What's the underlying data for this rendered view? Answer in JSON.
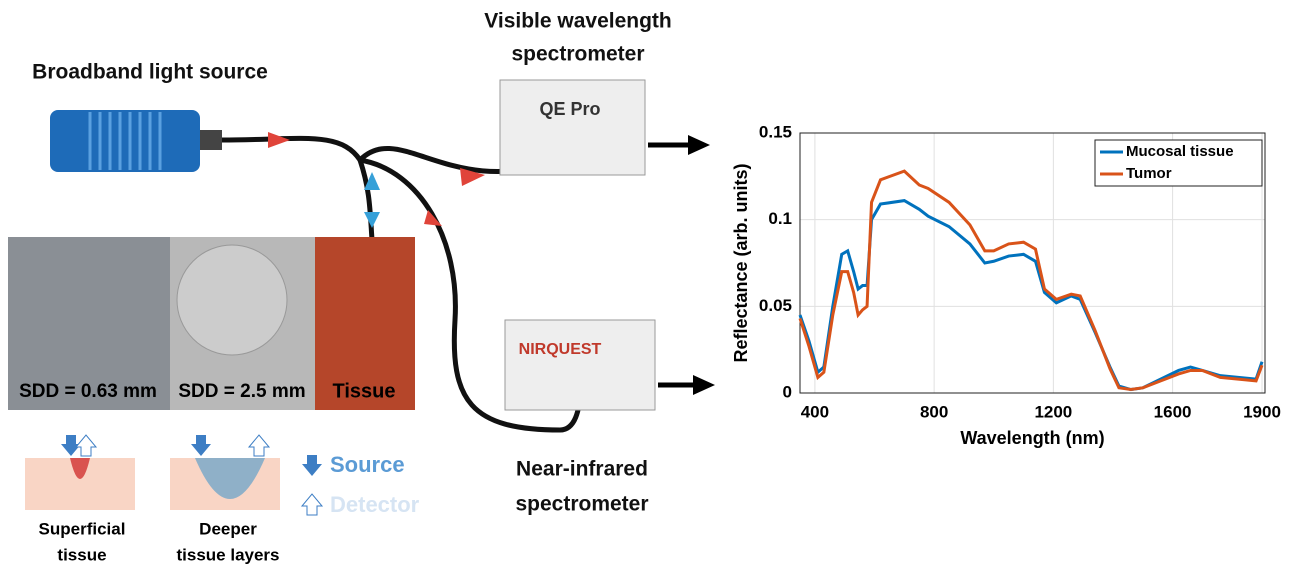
{
  "diagram": {
    "light_source": "Broadband light source",
    "visible_spectrometer": [
      "Visible wavelength",
      "spectrometer"
    ],
    "nir_spectrometer": [
      "Near-infrared",
      "spectrometer"
    ],
    "qepro_brand": "QE Pro",
    "nirquest_brand": "NIRQUEST",
    "sdd_small": "SDD = 0.63 mm",
    "sdd_large": "SDD = 2.5 mm",
    "tissue": "Tissue",
    "source": "Source",
    "detector": "Detector",
    "superficial": [
      "Superficial",
      "tissue"
    ],
    "deeper": [
      "Deeper",
      "tissue layers"
    ]
  },
  "chart_data": {
    "type": "line",
    "xlabel": "Wavelength (nm)",
    "ylabel": "Reflectance (arb. units)",
    "xlim": [
      350,
      1910
    ],
    "ylim": [
      0,
      0.15
    ],
    "xticks": [
      400,
      800,
      1200,
      1600,
      1900
    ],
    "yticks": [
      0,
      0.05,
      0.1,
      0.15
    ],
    "grid": true,
    "legend": "upper right",
    "x": [
      350,
      380,
      410,
      430,
      460,
      490,
      510,
      530,
      545,
      560,
      575,
      590,
      620,
      700,
      750,
      780,
      850,
      920,
      970,
      1000,
      1050,
      1100,
      1140,
      1170,
      1210,
      1260,
      1290,
      1340,
      1390,
      1420,
      1460,
      1500,
      1560,
      1620,
      1660,
      1700,
      1760,
      1820,
      1880,
      1900
    ],
    "series": [
      {
        "name": "Mucosal tissue",
        "color": "#0072bd",
        "values": [
          0.045,
          0.03,
          0.012,
          0.015,
          0.05,
          0.08,
          0.082,
          0.07,
          0.06,
          0.062,
          0.062,
          0.1,
          0.109,
          0.111,
          0.106,
          0.102,
          0.096,
          0.086,
          0.075,
          0.076,
          0.079,
          0.08,
          0.076,
          0.058,
          0.052,
          0.056,
          0.054,
          0.035,
          0.015,
          0.004,
          0.002,
          0.003,
          0.008,
          0.013,
          0.015,
          0.013,
          0.01,
          0.009,
          0.008,
          0.018
        ]
      },
      {
        "name": "Tumor",
        "color": "#d95319",
        "values": [
          0.043,
          0.027,
          0.009,
          0.012,
          0.045,
          0.07,
          0.07,
          0.058,
          0.045,
          0.048,
          0.05,
          0.11,
          0.123,
          0.128,
          0.12,
          0.118,
          0.11,
          0.097,
          0.082,
          0.082,
          0.086,
          0.087,
          0.083,
          0.06,
          0.054,
          0.057,
          0.056,
          0.036,
          0.014,
          0.003,
          0.002,
          0.003,
          0.007,
          0.011,
          0.013,
          0.013,
          0.009,
          0.008,
          0.007,
          0.016
        ]
      }
    ]
  }
}
